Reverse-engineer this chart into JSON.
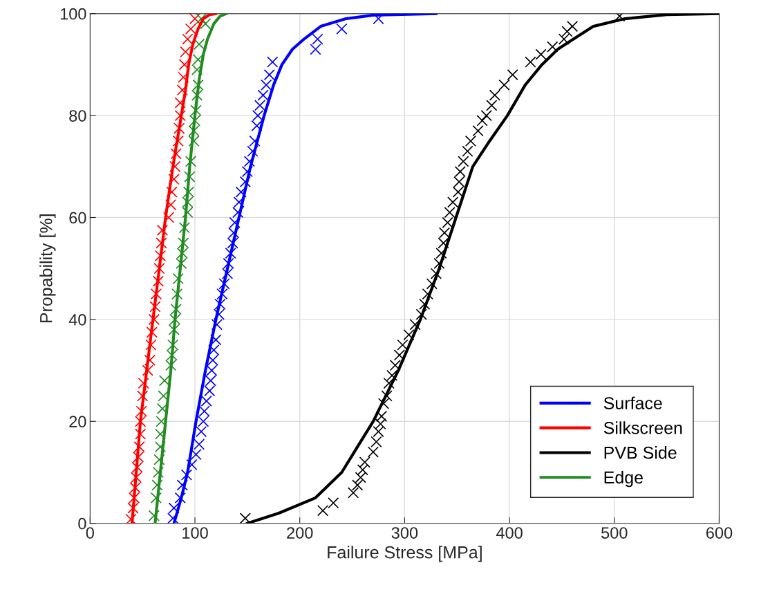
{
  "chart_data": {
    "type": "line",
    "xlabel": "Failure Stress [MPa]",
    "ylabel": "Propability [%]",
    "xlim": [
      0,
      600
    ],
    "ylim": [
      0,
      100
    ],
    "xticks": [
      0,
      100,
      200,
      300,
      400,
      500,
      600
    ],
    "yticks": [
      0,
      20,
      40,
      60,
      80,
      100
    ],
    "grid": true,
    "legend": "bottom right",
    "series": [
      {
        "name": "Surface",
        "color": "#0000ff",
        "marker": "none",
        "x": [
          80,
          87,
          93,
          101,
          110,
          120,
          131,
          142,
          153,
          166,
          175,
          183,
          193,
          204,
          220,
          244,
          270,
          330
        ],
        "values": [
          0,
          5,
          10,
          20,
          30,
          40,
          50,
          60,
          70,
          80,
          86,
          90,
          93,
          95,
          97.5,
          99,
          99.7,
          100
        ]
      },
      {
        "name": "Silkscreen",
        "color": "#ff0000",
        "marker": "none",
        "x": [
          40,
          44,
          48,
          54,
          60,
          66,
          72,
          79,
          87,
          91,
          94,
          98,
          103,
          108,
          114,
          120
        ],
        "values": [
          0,
          10,
          20,
          30,
          40,
          50,
          60,
          70,
          80,
          85,
          90,
          94,
          97,
          99,
          99.8,
          100
        ]
      },
      {
        "name": "PVB Side",
        "color": "#000000",
        "marker": "none",
        "x": [
          150,
          180,
          215,
          240,
          255,
          270,
          294,
          315,
          333,
          349,
          365,
          381,
          398,
          415,
          431,
          446,
          461,
          480,
          510,
          550,
          600
        ],
        "values": [
          0,
          2,
          5,
          10,
          15,
          20,
          30,
          40,
          50,
          60,
          70,
          75,
          80,
          86,
          90,
          93,
          95,
          97.5,
          99,
          99.8,
          100
        ]
      },
      {
        "name": "Edge",
        "color": "#228b22",
        "marker": "none",
        "x": [
          62,
          67,
          72,
          77,
          81,
          86,
          91,
          95,
          100,
          104,
          108,
          112,
          118,
          124,
          130
        ],
        "values": [
          0,
          10,
          20,
          30,
          40,
          50,
          60,
          70,
          80,
          87,
          92,
          95,
          98,
          99.5,
          100
        ]
      },
      {
        "type": "scatter",
        "color": "#0000ff",
        "marker": "cross",
        "x": [
          79,
          80,
          86,
          88,
          92,
          97,
          101,
          104,
          106,
          108,
          109,
          111,
          114,
          115,
          116,
          117,
          118,
          120,
          121,
          123,
          124,
          126,
          128,
          131,
          132,
          134,
          136,
          137,
          138,
          141,
          142,
          144,
          148,
          150,
          152,
          155,
          157,
          159,
          160,
          162,
          165,
          168,
          171,
          174,
          215,
          217,
          240,
          275
        ],
        "values": [
          1,
          3,
          5,
          7.5,
          9.5,
          11.5,
          13.5,
          15.5,
          18,
          20,
          22,
          24,
          26,
          28,
          30,
          32,
          34,
          36,
          39,
          41,
          43,
          45,
          47,
          49,
          51,
          53,
          55,
          57,
          59,
          61,
          63,
          65,
          67,
          69,
          71,
          73,
          75,
          78,
          80,
          82,
          84,
          86,
          88,
          90.5,
          93,
          95,
          97,
          99
        ]
      },
      {
        "type": "scatter",
        "color": "#ff0000",
        "marker": "cross",
        "x": [
          39,
          41,
          42,
          43,
          44,
          45,
          46,
          47,
          48,
          48,
          49,
          50,
          51,
          55,
          57,
          58,
          59,
          61,
          62,
          63,
          65,
          66,
          67,
          68,
          69,
          75,
          77,
          78,
          80,
          81,
          82,
          84,
          85,
          86,
          86,
          88,
          89,
          90,
          91,
          93,
          96,
          100
        ],
        "values": [
          0.8,
          3,
          5,
          7,
          9,
          11,
          13,
          15,
          17.5,
          20,
          22,
          25,
          27.5,
          30,
          32,
          35,
          37.5,
          40,
          42.5,
          45,
          47.5,
          50,
          52.5,
          55,
          57.5,
          60,
          62.5,
          65,
          67.5,
          70,
          72.5,
          75,
          77.5,
          80,
          82.5,
          85,
          87.5,
          90,
          92.5,
          95,
          97,
          99
        ]
      },
      {
        "type": "scatter",
        "color": "#000000",
        "marker": "cross",
        "x": [
          148,
          222,
          232,
          251,
          255,
          258,
          260,
          262,
          270,
          273,
          275,
          277,
          278,
          280,
          283,
          285,
          288,
          291,
          295,
          298,
          304,
          310,
          316,
          319,
          322,
          326,
          330,
          333,
          335,
          337,
          338,
          341,
          343,
          346,
          351,
          352,
          353,
          356,
          360,
          363,
          370,
          374,
          378,
          383,
          386,
          395,
          403,
          420,
          430,
          441,
          452,
          455,
          460,
          505
        ],
        "values": [
          1,
          2.5,
          4,
          6,
          7.5,
          9,
          10.5,
          12,
          14,
          16,
          18,
          19.5,
          21,
          23.5,
          25,
          27.5,
          29,
          31,
          33,
          35,
          37,
          39,
          41,
          43,
          45,
          47,
          49,
          51,
          53,
          55,
          57,
          59,
          61,
          63,
          65,
          67,
          69,
          71,
          73,
          75,
          77,
          79,
          80,
          82,
          84,
          86,
          88,
          90.5,
          92,
          93.5,
          95,
          96.5,
          97.5,
          99.5
        ]
      },
      {
        "type": "scatter",
        "color": "#228b22",
        "marker": "cross",
        "x": [
          61,
          63,
          64,
          65,
          66,
          67,
          67,
          68,
          69,
          70,
          71,
          77,
          78,
          79,
          80,
          81,
          82,
          83,
          84,
          87,
          88,
          89,
          90,
          93,
          93,
          94,
          95,
          96,
          99,
          99,
          100,
          101,
          102,
          103,
          102,
          103,
          104,
          106,
          110
        ],
        "values": [
          1.5,
          5,
          7.5,
          10,
          12.5,
          15,
          17.5,
          20,
          22.5,
          25,
          28,
          31,
          33,
          35,
          38,
          40,
          42,
          45,
          48,
          51,
          53,
          55,
          58,
          61,
          63,
          65,
          68,
          71,
          75,
          77,
          79,
          81,
          84,
          86,
          89,
          91,
          94,
          99,
          98
        ]
      }
    ]
  }
}
